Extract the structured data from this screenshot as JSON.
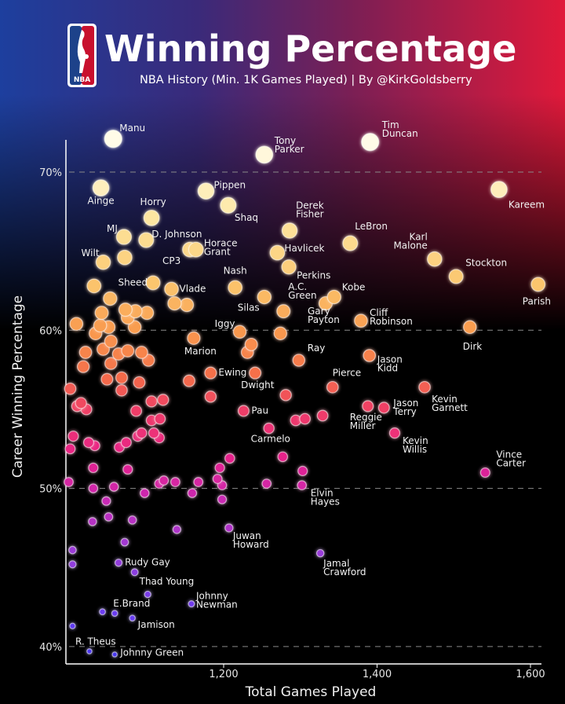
{
  "header": {
    "title": "Winning Percentage",
    "subtitle": "NBA History (Min. 1K Games Played) | By @KirkGoldsberry",
    "logo_text": "NBA"
  },
  "chart_data": {
    "type": "scatter",
    "title": "Winning Percentage",
    "subtitle": "NBA History (Min. 1K Games Played) | By @KirkGoldsberry",
    "xlabel": "Total Games Played",
    "ylabel": "Career Winning Percentage",
    "xlim": [
      995,
      1625
    ],
    "ylim": [
      39,
      73
    ],
    "x_ticks": [
      {
        "value": 1200,
        "label": "1,200"
      },
      {
        "value": 1400,
        "label": "1,400"
      },
      {
        "value": 1600,
        "label": "1,600"
      }
    ],
    "y_ticks": [
      {
        "value": 70,
        "label": "70%"
      },
      {
        "value": 60,
        "label": "60%"
      },
      {
        "value": 50,
        "label": "50%"
      },
      {
        "value": 40,
        "label": "40%"
      }
    ],
    "grid": "horizontal dashed",
    "colors": {
      "high": "#fffbe8",
      "mid": "#f46b4a",
      "low": "#4a38f0"
    },
    "points": [
      {
        "label": "Manu",
        "x": 1056,
        "y": 72.1
      },
      {
        "label": "Tony Parker",
        "x": 1253,
        "y": 71.1
      },
      {
        "label": "Tim Duncan",
        "x": 1391,
        "y": 71.9
      },
      {
        "label": "Ainge",
        "x": 1040,
        "y": 69.0
      },
      {
        "label": "Pippen",
        "x": 1177,
        "y": 68.8
      },
      {
        "label": "Kareem",
        "x": 1559,
        "y": 68.9
      },
      {
        "label": "Shaq",
        "x": 1206,
        "y": 67.9
      },
      {
        "label": "Horry",
        "x": 1106,
        "y": 67.1
      },
      {
        "label": "Derek Fisher",
        "x": 1286,
        "y": 66.3
      },
      {
        "label": "LeBron",
        "x": 1365,
        "y": 65.5
      },
      {
        "label": "MJ",
        "x": 1070,
        "y": 65.9
      },
      {
        "label": "D. Johnson",
        "x": 1099,
        "y": 65.7
      },
      {
        "label": "Wilt",
        "x": 1043,
        "y": 64.3
      },
      {
        "label": "CP3",
        "x": 1156,
        "y": 65.1
      },
      {
        "label": "Horace Grant",
        "x": 1164,
        "y": 65.1
      },
      {
        "label": "Havlicek",
        "x": 1270,
        "y": 64.9
      },
      {
        "label": "Perkins",
        "x": 1285,
        "y": 64.0
      },
      {
        "label": "Karl Malone",
        "x": 1475,
        "y": 64.5
      },
      {
        "label": "Stockton",
        "x": 1503,
        "y": 63.4
      },
      {
        "label": "Nash",
        "x": 1215,
        "y": 62.7
      },
      {
        "label": "Sheed",
        "x": 1108,
        "y": 63.0
      },
      {
        "label": "Vlade",
        "x": 1132,
        "y": 62.6
      },
      {
        "label": "Kobe",
        "x": 1344,
        "y": 62.1
      },
      {
        "label": "Silas",
        "x": 1253,
        "y": 62.1
      },
      {
        "label": "A.C. Green",
        "x": 1278,
        "y": 61.2
      },
      {
        "label": "Gary Payton",
        "x": 1333,
        "y": 61.7
      },
      {
        "label": "Cliff Robinson",
        "x": 1379,
        "y": 60.6
      },
      {
        "label": "Parish",
        "x": 1610,
        "y": 62.9
      },
      {
        "label": "Dirk",
        "x": 1521,
        "y": 60.2
      },
      {
        "label": "Iggy",
        "x": 1221,
        "y": 59.9
      },
      {
        "label": "Marion",
        "x": 1161,
        "y": 59.5
      },
      {
        "label": "Ray",
        "x": 1298,
        "y": 58.1
      },
      {
        "label": "Jason Kidd",
        "x": 1390,
        "y": 58.4
      },
      {
        "label": "Ewing",
        "x": 1183,
        "y": 57.3
      },
      {
        "label": "Dwight",
        "x": 1241,
        "y": 57.3
      },
      {
        "label": "Pierce",
        "x": 1342,
        "y": 56.4
      },
      {
        "label": "Kevin Garnett",
        "x": 1462,
        "y": 56.4
      },
      {
        "label": "Reggie Miller",
        "x": 1388,
        "y": 55.2
      },
      {
        "label": "Jason Terry",
        "x": 1409,
        "y": 55.1
      },
      {
        "label": "Pau",
        "x": 1226,
        "y": 54.9
      },
      {
        "label": "Carmelo",
        "x": 1259,
        "y": 53.8
      },
      {
        "label": "Kevin Willis",
        "x": 1423,
        "y": 53.5
      },
      {
        "label": "Vince Carter",
        "x": 1541,
        "y": 51.0
      },
      {
        "label": "Elvin Hayes",
        "x": 1302,
        "y": 50.2
      },
      {
        "label": "Juwan Howard",
        "x": 1207,
        "y": 47.5
      },
      {
        "label": "Jamal Crawford",
        "x": 1326,
        "y": 45.9
      },
      {
        "label": "Rudy Gay",
        "x": 1063,
        "y": 45.3
      },
      {
        "label": "Thad Young",
        "x": 1084,
        "y": 44.7
      },
      {
        "label": "Johnny Newman",
        "x": 1158,
        "y": 42.7
      },
      {
        "label": "E.Brand",
        "x": 1058,
        "y": 42.1
      },
      {
        "label": "Jamison",
        "x": 1081,
        "y": 41.8
      },
      {
        "label": "R. Theus",
        "x": 1025,
        "y": 39.7
      },
      {
        "label": "Johnny Green",
        "x": 1058,
        "y": 39.5
      },
      {
        "x": 1071,
        "y": 64.6
      },
      {
        "x": 1031,
        "y": 62.8
      },
      {
        "x": 1052,
        "y": 62.0
      },
      {
        "x": 1041,
        "y": 61.1
      },
      {
        "x": 1072,
        "y": 61.3
      },
      {
        "x": 1085,
        "y": 61.2
      },
      {
        "x": 1100,
        "y": 61.1
      },
      {
        "x": 1075,
        "y": 60.8
      },
      {
        "x": 1084,
        "y": 60.2
      },
      {
        "x": 1136,
        "y": 61.7
      },
      {
        "x": 1152,
        "y": 61.6
      },
      {
        "x": 1008,
        "y": 60.4
      },
      {
        "x": 1039,
        "y": 60.3
      },
      {
        "x": 1050,
        "y": 60.2
      },
      {
        "x": 1033,
        "y": 59.8
      },
      {
        "x": 1053,
        "y": 59.3
      },
      {
        "x": 1020,
        "y": 58.6
      },
      {
        "x": 1043,
        "y": 58.8
      },
      {
        "x": 1063,
        "y": 58.5
      },
      {
        "x": 1075,
        "y": 58.7
      },
      {
        "x": 1093,
        "y": 58.6
      },
      {
        "x": 1102,
        "y": 58.1
      },
      {
        "x": 1017,
        "y": 57.7
      },
      {
        "x": 1053,
        "y": 57.9
      },
      {
        "x": 1048,
        "y": 56.9
      },
      {
        "x": 1067,
        "y": 57.0
      },
      {
        "x": 1090,
        "y": 56.7
      },
      {
        "x": 1067,
        "y": 56.2
      },
      {
        "x": 1000,
        "y": 56.3
      },
      {
        "x": 1155,
        "y": 56.8
      },
      {
        "x": 1183,
        "y": 55.8
      },
      {
        "x": 1014,
        "y": 55.4
      },
      {
        "x": 1021,
        "y": 55.0
      },
      {
        "x": 1009,
        "y": 55.2
      },
      {
        "x": 1106,
        "y": 55.5
      },
      {
        "x": 1121,
        "y": 55.6
      },
      {
        "x": 1086,
        "y": 54.9
      },
      {
        "x": 1106,
        "y": 54.3
      },
      {
        "x": 1117,
        "y": 54.4
      },
      {
        "x": 1004,
        "y": 53.3
      },
      {
        "x": 1024,
        "y": 52.9
      },
      {
        "x": 1032,
        "y": 52.7
      },
      {
        "x": 1093,
        "y": 53.5
      },
      {
        "x": 1088,
        "y": 53.3
      },
      {
        "x": 1109,
        "y": 53.5
      },
      {
        "x": 1116,
        "y": 53.2
      },
      {
        "x": 1073,
        "y": 52.9
      },
      {
        "x": 1064,
        "y": 52.6
      },
      {
        "x": 1000,
        "y": 52.5
      },
      {
        "x": 1208,
        "y": 51.9
      },
      {
        "x": 1195,
        "y": 51.3
      },
      {
        "x": 1030,
        "y": 51.3
      },
      {
        "x": 1075,
        "y": 51.2
      },
      {
        "x": 998,
        "y": 50.4
      },
      {
        "x": 1030,
        "y": 50.0
      },
      {
        "x": 1057,
        "y": 50.1
      },
      {
        "x": 1116,
        "y": 50.3
      },
      {
        "x": 1122,
        "y": 50.5
      },
      {
        "x": 1137,
        "y": 50.4
      },
      {
        "x": 1167,
        "y": 50.4
      },
      {
        "x": 1192,
        "y": 50.6
      },
      {
        "x": 1198,
        "y": 50.2
      },
      {
        "x": 1097,
        "y": 49.7
      },
      {
        "x": 1159,
        "y": 49.7
      },
      {
        "x": 1198,
        "y": 49.3
      },
      {
        "x": 1047,
        "y": 49.2
      },
      {
        "x": 1050,
        "y": 48.2
      },
      {
        "x": 1029,
        "y": 47.9
      },
      {
        "x": 1081,
        "y": 48.0
      },
      {
        "x": 1139,
        "y": 47.4
      },
      {
        "x": 1274,
        "y": 59.8
      },
      {
        "x": 1236,
        "y": 59.1
      },
      {
        "x": 1231,
        "y": 58.6
      },
      {
        "x": 1281,
        "y": 55.9
      },
      {
        "x": 1294,
        "y": 54.3
      },
      {
        "x": 1306,
        "y": 54.4
      },
      {
        "x": 1329,
        "y": 54.6
      },
      {
        "x": 1277,
        "y": 52.0
      },
      {
        "x": 1303,
        "y": 51.1
      },
      {
        "x": 1256,
        "y": 50.3
      },
      {
        "x": 1003,
        "y": 46.1
      },
      {
        "x": 1003,
        "y": 45.2
      },
      {
        "x": 1071,
        "y": 46.6
      },
      {
        "x": 1101,
        "y": 43.3
      },
      {
        "x": 1042,
        "y": 42.2
      },
      {
        "x": 1003,
        "y": 41.3
      }
    ]
  }
}
